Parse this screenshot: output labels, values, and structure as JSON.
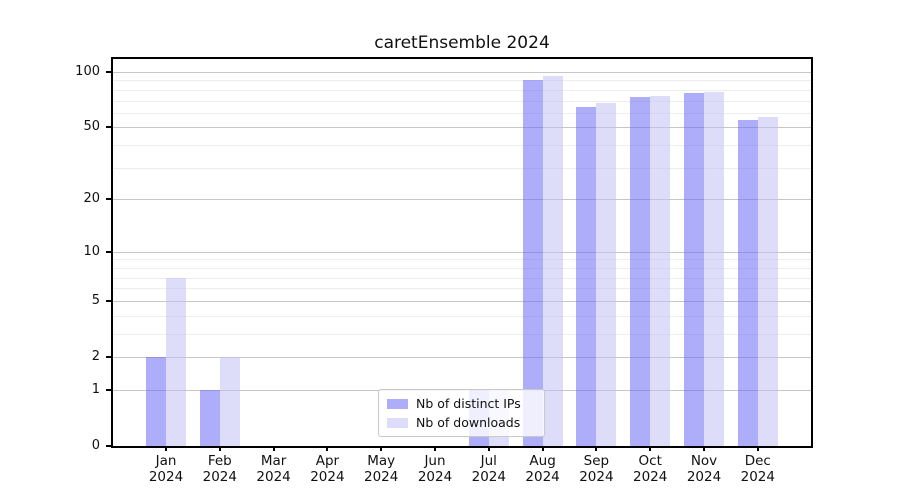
{
  "chart_data": {
    "type": "bar",
    "title": "caretEnsemble 2024",
    "categories": [
      "Jan",
      "Feb",
      "Mar",
      "Apr",
      "May",
      "Jun",
      "Jul",
      "Aug",
      "Sep",
      "Oct",
      "Nov",
      "Dec"
    ],
    "year_label": "2024",
    "series": [
      {
        "name": "Nb of distinct IPs",
        "color": "rgba(106,106,244,0.55)",
        "values": [
          2,
          1,
          0,
          0,
          0,
          0,
          1,
          90,
          65,
          73,
          77,
          55
        ]
      },
      {
        "name": "Nb of downloads",
        "color": "rgba(193,193,245,0.55)",
        "values": [
          7,
          2,
          0,
          0,
          0,
          0,
          1,
          95,
          68,
          74,
          78,
          57
        ]
      }
    ],
    "yscale": "log1p",
    "ytick_labels": [
      0,
      1,
      2,
      5,
      10,
      20,
      50,
      100
    ],
    "minor_gridlines": [
      3,
      4,
      6,
      7,
      8,
      9,
      30,
      40,
      60,
      70,
      80,
      90
    ],
    "ylim": [
      0,
      115
    ],
    "grid": true,
    "legend_position": "bottom-center",
    "colors": {
      "major_grid": "#c6c6c6",
      "minor_grid": "#ededed",
      "spine": "#000000",
      "text": "#111111"
    }
  }
}
